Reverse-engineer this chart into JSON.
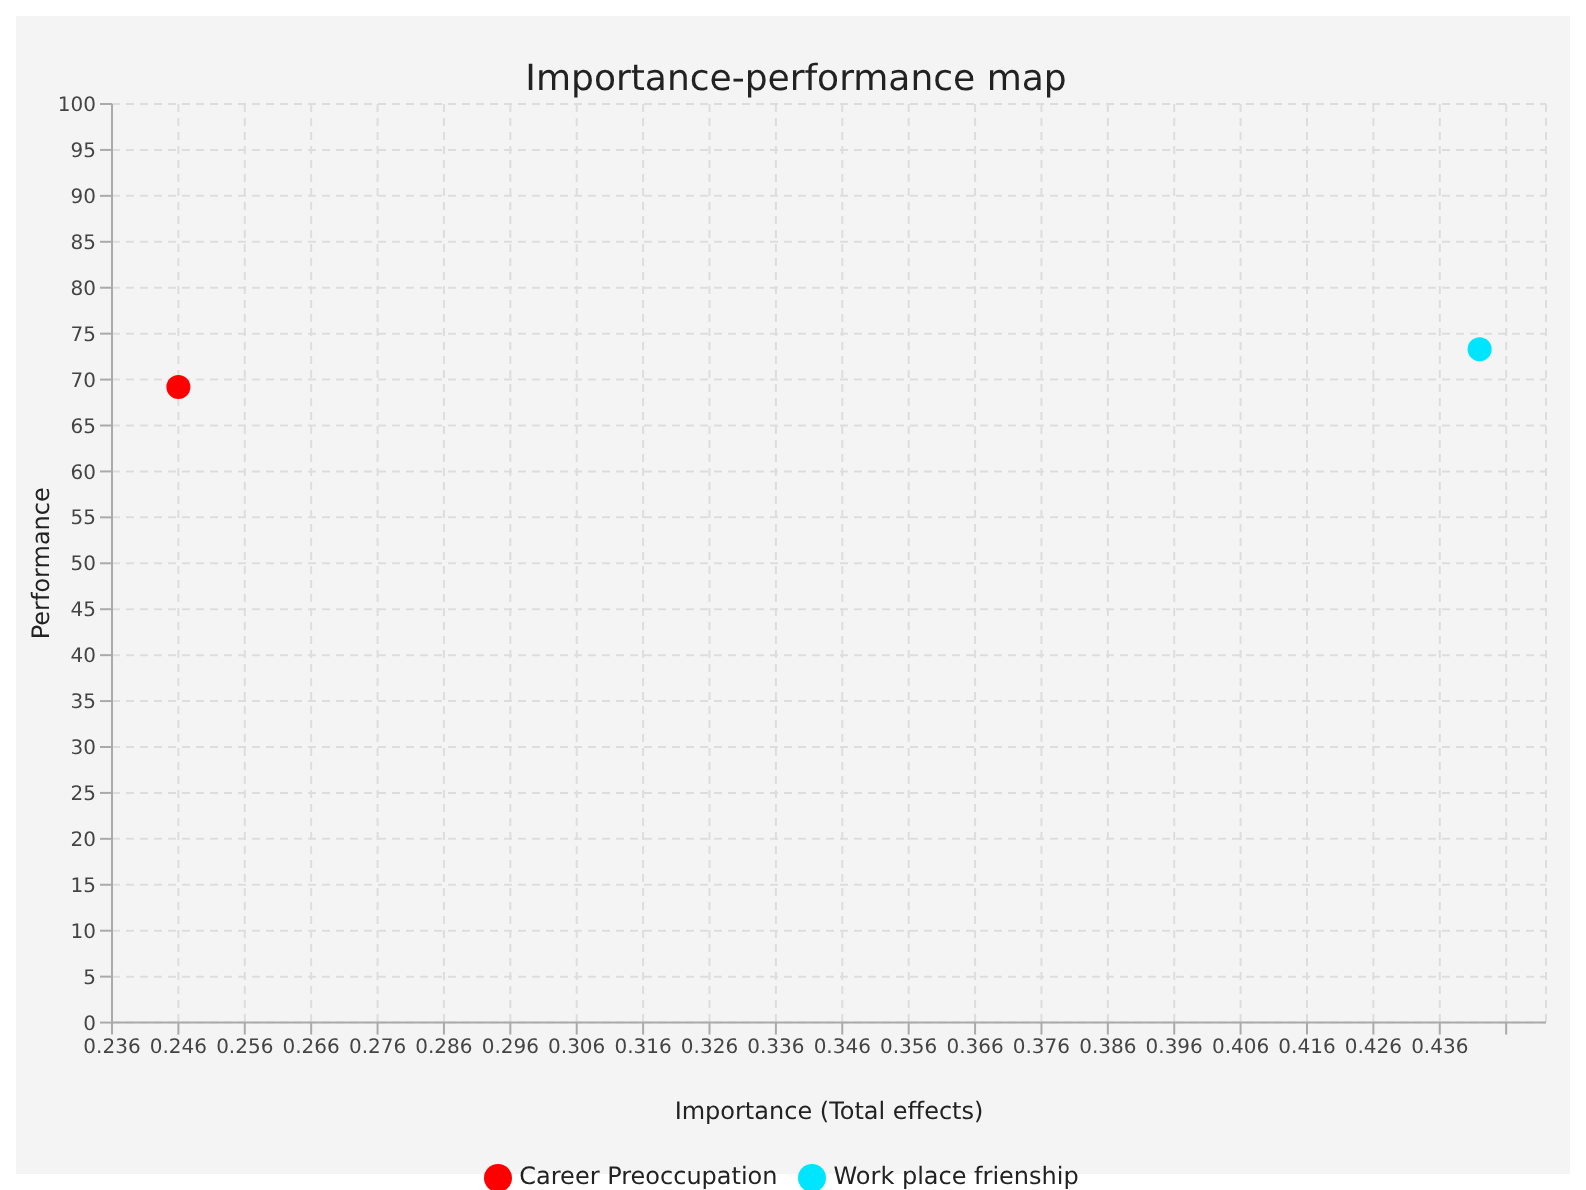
{
  "chart_data": {
    "type": "scatter",
    "title": "Importance-performance map",
    "xlabel": "Importance (Total effects)",
    "ylabel": "Performance",
    "series": [
      {
        "name": "Career Preoccupation",
        "color": "#ff0000",
        "x": [
          0.246
        ],
        "values": [
          69.2
        ]
      },
      {
        "name": "Work place frienship",
        "color": "#00e5ff",
        "x": [
          0.442
        ],
        "values": [
          73.3
        ]
      }
    ],
    "xlim": [
      0.236,
      0.452
    ],
    "xticks": [
      0.236,
      0.246,
      0.256,
      0.266,
      0.276,
      0.286,
      0.296,
      0.306,
      0.316,
      0.326,
      0.336,
      0.346,
      0.356,
      0.366,
      0.376,
      0.386,
      0.396,
      0.406,
      0.416,
      0.426,
      0.436,
      {
        "value": 0.446,
        "label": null
      }
    ],
    "ylim": [
      0,
      100
    ],
    "yticks": [
      0,
      5,
      10,
      15,
      20,
      25,
      30,
      35,
      40,
      45,
      50,
      55,
      60,
      65,
      70,
      75,
      80,
      85,
      90,
      95,
      100
    ],
    "grid": true,
    "legend": "bottom",
    "marker": "circle"
  }
}
